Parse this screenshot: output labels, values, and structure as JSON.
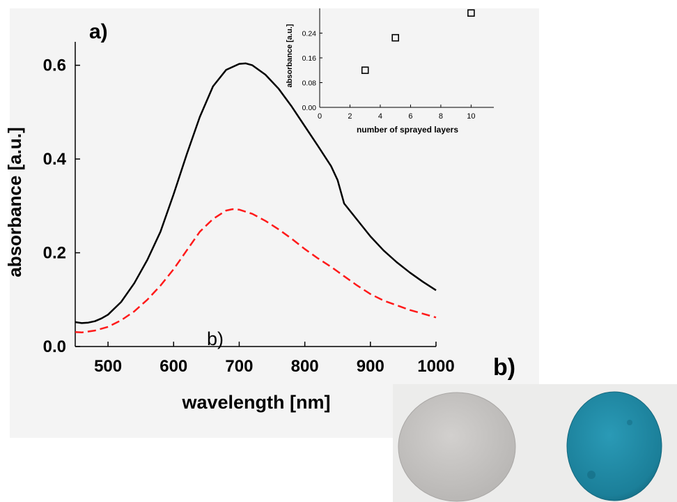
{
  "panel_labels": {
    "a": "a)",
    "b_inline": "b)",
    "b_photo": "b)"
  },
  "chart_data": [
    {
      "type": "line",
      "xlabel": "wavelength [nm]",
      "ylabel": "absorbance [a.u.]",
      "xlim": [
        450,
        1000
      ],
      "ylim": [
        0.0,
        0.65
      ],
      "xticks": [
        500,
        600,
        700,
        800,
        900,
        1000
      ],
      "yticks": [
        "0.0",
        "0.2",
        "0.4",
        "0.6"
      ],
      "grid": false,
      "series": [
        {
          "color": "#000000",
          "style": "solid",
          "x": [
            450,
            460,
            470,
            480,
            490,
            500,
            520,
            540,
            560,
            580,
            600,
            620,
            640,
            660,
            680,
            700,
            710,
            720,
            740,
            760,
            780,
            800,
            820,
            840,
            850,
            860,
            880,
            900,
            920,
            940,
            960,
            980,
            1000
          ],
          "y": [
            0.052,
            0.05,
            0.051,
            0.054,
            0.06,
            0.068,
            0.095,
            0.135,
            0.185,
            0.245,
            0.325,
            0.41,
            0.49,
            0.555,
            0.59,
            0.603,
            0.604,
            0.6,
            0.58,
            0.55,
            0.512,
            0.47,
            0.428,
            0.385,
            0.355,
            0.305,
            0.27,
            0.235,
            0.205,
            0.18,
            0.158,
            0.138,
            0.12
          ]
        },
        {
          "color": "#ff1a1a",
          "style": "dashed",
          "x": [
            450,
            460,
            480,
            500,
            520,
            540,
            560,
            580,
            600,
            620,
            640,
            660,
            680,
            690,
            700,
            720,
            740,
            760,
            780,
            800,
            820,
            840,
            850,
            860,
            880,
            900,
            920,
            940,
            960,
            980,
            1000
          ],
          "y": [
            0.031,
            0.03,
            0.034,
            0.042,
            0.056,
            0.075,
            0.1,
            0.13,
            0.165,
            0.205,
            0.245,
            0.272,
            0.29,
            0.293,
            0.292,
            0.283,
            0.268,
            0.25,
            0.23,
            0.208,
            0.188,
            0.17,
            0.16,
            0.15,
            0.13,
            0.112,
            0.098,
            0.088,
            0.078,
            0.07,
            0.062
          ]
        }
      ]
    },
    {
      "type": "scatter",
      "xlabel": "number of sprayed layers",
      "ylabel": "absorbance [a.u.]",
      "xlim": [
        0,
        11.5
      ],
      "ylim": [
        0.0,
        0.32
      ],
      "xticks": [
        "0",
        "2",
        "4",
        "6",
        "8",
        "10"
      ],
      "yticks": [
        "0.00",
        "0.08",
        "0.16",
        "0.24"
      ],
      "marker": "open-square",
      "x": [
        3,
        5,
        10
      ],
      "y": [
        0.12,
        0.225,
        0.305
      ]
    }
  ],
  "colors": {
    "panel_bg": "#f4f4f4",
    "photo_bg": "#e9e9e9",
    "disk_grey": "#c5c3c1",
    "disk_blue": "#1f8aa5"
  }
}
